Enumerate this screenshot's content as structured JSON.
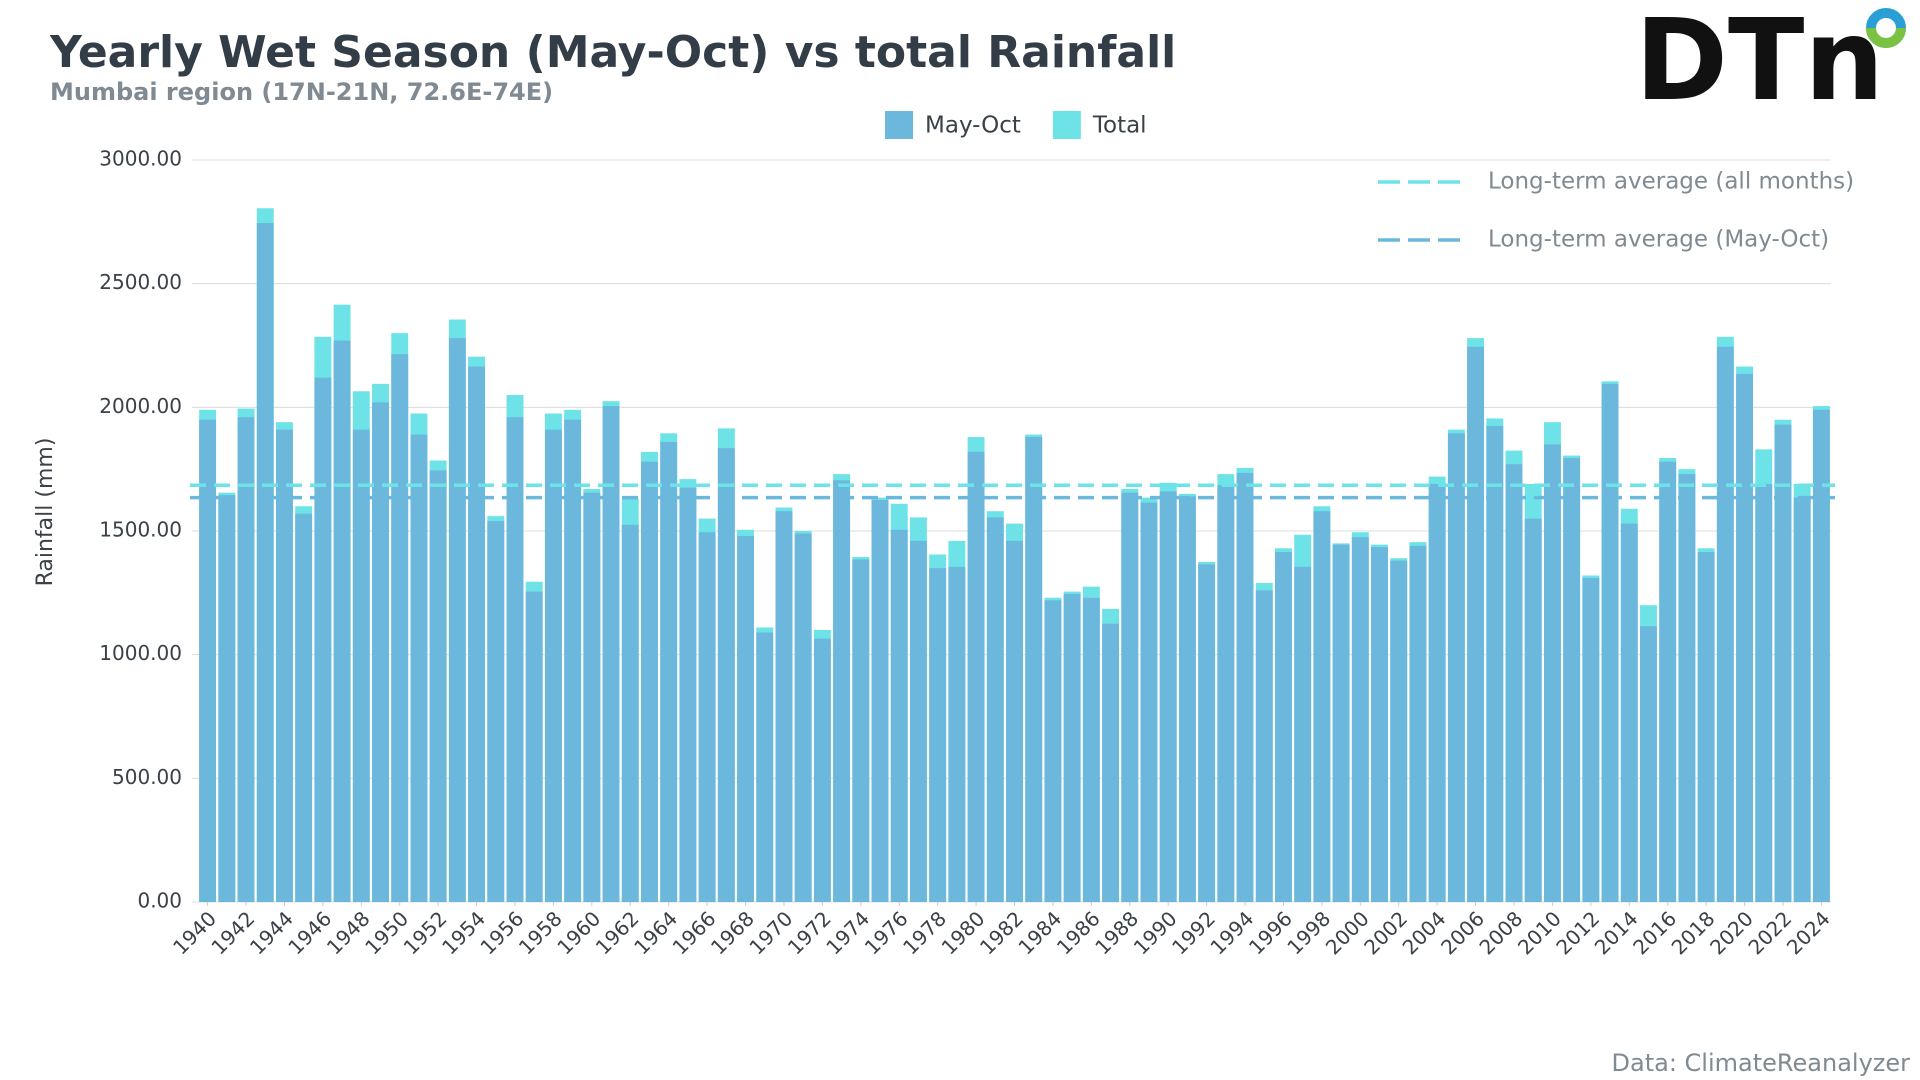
{
  "chart_data": {
    "type": "bar",
    "title": "Yearly Wet Season (May-Oct) vs total Rainfall",
    "subtitle": "Mumbai region (17N-21N, 72.6E-74E)",
    "logo": "DTn",
    "source": "Data: ClimateReanalyzer",
    "y_label": "Rainfall (mm)",
    "x": [
      1940,
      1941,
      1942,
      1943,
      1944,
      1945,
      1946,
      1947,
      1948,
      1949,
      1950,
      1951,
      1952,
      1953,
      1954,
      1955,
      1956,
      1957,
      1958,
      1959,
      1960,
      1961,
      1962,
      1963,
      1964,
      1965,
      1966,
      1967,
      1968,
      1969,
      1970,
      1971,
      1972,
      1973,
      1974,
      1975,
      1976,
      1977,
      1978,
      1979,
      1980,
      1981,
      1982,
      1983,
      1984,
      1985,
      1986,
      1987,
      1988,
      1989,
      1990,
      1991,
      1992,
      1993,
      1994,
      1995,
      1996,
      1997,
      1998,
      1999,
      2000,
      2001,
      2002,
      2003,
      2004,
      2005,
      2006,
      2007,
      2008,
      2009,
      2010,
      2011,
      2012,
      2013,
      2014,
      2015,
      2016,
      2017,
      2018,
      2019,
      2020,
      2021,
      2022,
      2023,
      2024
    ],
    "xlim": [
      1939.5,
      2024.5
    ],
    "xticks": [
      1940,
      1942,
      1944,
      1946,
      1948,
      1950,
      1952,
      1954,
      1956,
      1958,
      1960,
      1962,
      1964,
      1966,
      1968,
      1970,
      1972,
      1974,
      1976,
      1978,
      1980,
      1982,
      1984,
      1986,
      1988,
      1990,
      1992,
      1994,
      1996,
      1998,
      2000,
      2002,
      2004,
      2006,
      2008,
      2010,
      2012,
      2014,
      2016,
      2018,
      2020,
      2022,
      2024
    ],
    "series": [
      {
        "name": "May-Oct",
        "color": "#6bb8dc",
        "values": [
          1950,
          1645,
          1960,
          2745,
          1910,
          1570,
          2120,
          2270,
          1910,
          2020,
          2215,
          1890,
          1745,
          2280,
          2165,
          1540,
          1960,
          1255,
          1910,
          1950,
          1655,
          2005,
          1525,
          1780,
          1860,
          1675,
          1495,
          1835,
          1480,
          1090,
          1580,
          1490,
          1065,
          1705,
          1385,
          1625,
          1505,
          1460,
          1350,
          1355,
          1820,
          1555,
          1460,
          1880,
          1220,
          1245,
          1230,
          1125,
          1655,
          1615,
          1660,
          1640,
          1365,
          1685,
          1735,
          1260,
          1415,
          1355,
          1580,
          1445,
          1475,
          1435,
          1380,
          1440,
          1690,
          1895,
          2245,
          1925,
          1770,
          1550,
          1850,
          1795,
          1310,
          2095,
          1530,
          1115,
          1780,
          1730,
          1415,
          2245,
          2135,
          1690,
          1930,
          1635,
          1990
        ]
      },
      {
        "name": "Total",
        "color": "#6de3e8",
        "values": [
          1990,
          1655,
          1995,
          2805,
          1940,
          1600,
          2285,
          2415,
          2065,
          2095,
          2300,
          1975,
          1785,
          2355,
          2205,
          1560,
          2050,
          1295,
          1975,
          1990,
          1670,
          2025,
          1630,
          1820,
          1895,
          1710,
          1550,
          1915,
          1505,
          1110,
          1595,
          1500,
          1100,
          1730,
          1395,
          1635,
          1610,
          1555,
          1405,
          1460,
          1880,
          1580,
          1530,
          1890,
          1230,
          1255,
          1275,
          1185,
          1670,
          1635,
          1695,
          1650,
          1375,
          1730,
          1755,
          1290,
          1430,
          1485,
          1600,
          1450,
          1495,
          1445,
          1390,
          1455,
          1720,
          1910,
          2280,
          1955,
          1825,
          1690,
          1940,
          1805,
          1320,
          2105,
          1590,
          1200,
          1795,
          1750,
          1430,
          2285,
          2165,
          1830,
          1950,
          1690,
          2005
        ]
      }
    ],
    "reference_lines": [
      {
        "name": "Long-term average (all months)",
        "value": 1685,
        "color": "#6de3e8"
      },
      {
        "name": "Long-term average (May-Oct)",
        "value": 1635,
        "color": "#6bb8dc"
      }
    ],
    "ylim": [
      0,
      3000
    ],
    "yticks": [
      {
        "value": 0,
        "label": "0.00"
      },
      {
        "value": 500,
        "label": "500.00"
      },
      {
        "value": 1000,
        "label": "1000.00"
      },
      {
        "value": 1500,
        "label": "1500.00"
      },
      {
        "value": 2000,
        "label": "2000.00"
      },
      {
        "value": 2500,
        "label": "2500.00"
      },
      {
        "value": 3000,
        "label": "3000.00"
      }
    ],
    "grid": true
  }
}
